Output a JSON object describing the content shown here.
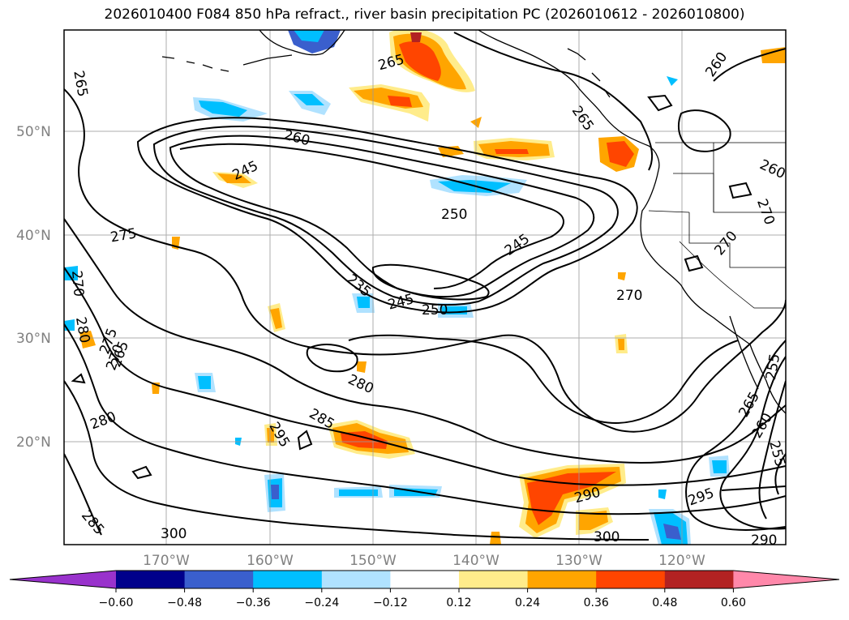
{
  "title": "2026010400 F084 850 hPa refract., river basin precipitation PC (2026010612 - 2026010800)",
  "lat_labels": [
    "50°N",
    "40°N",
    "30°N",
    "20°N"
  ],
  "lon_labels": [
    "170°W",
    "160°W",
    "150°W",
    "140°W",
    "130°W",
    "120°W"
  ],
  "colorbar": {
    "ticks": [
      "−0.60",
      "−0.48",
      "−0.36",
      "−0.24",
      "−0.12",
      "0.12",
      "0.24",
      "0.36",
      "0.48",
      "0.60"
    ],
    "colors": [
      "#9932cc",
      "#00008b",
      "#3a5fcd",
      "#00bfff",
      "#b0e2ff",
      "#ffffff",
      "#ffec8b",
      "#ffa500",
      "#ff4500",
      "#b22222",
      "#ff88aa"
    ]
  },
  "contour_labels": [
    "265",
    "265",
    "260",
    "260",
    "265",
    "245",
    "260",
    "250",
    "245",
    "275",
    "270",
    "270",
    "235",
    "245",
    "250",
    "280",
    "275",
    "270",
    "280",
    "280",
    "285",
    "295",
    "295",
    "290",
    "265",
    "260",
    "255",
    "255",
    "300",
    "300",
    "285",
    "290",
    "270",
    "270",
    "265"
  ]
}
